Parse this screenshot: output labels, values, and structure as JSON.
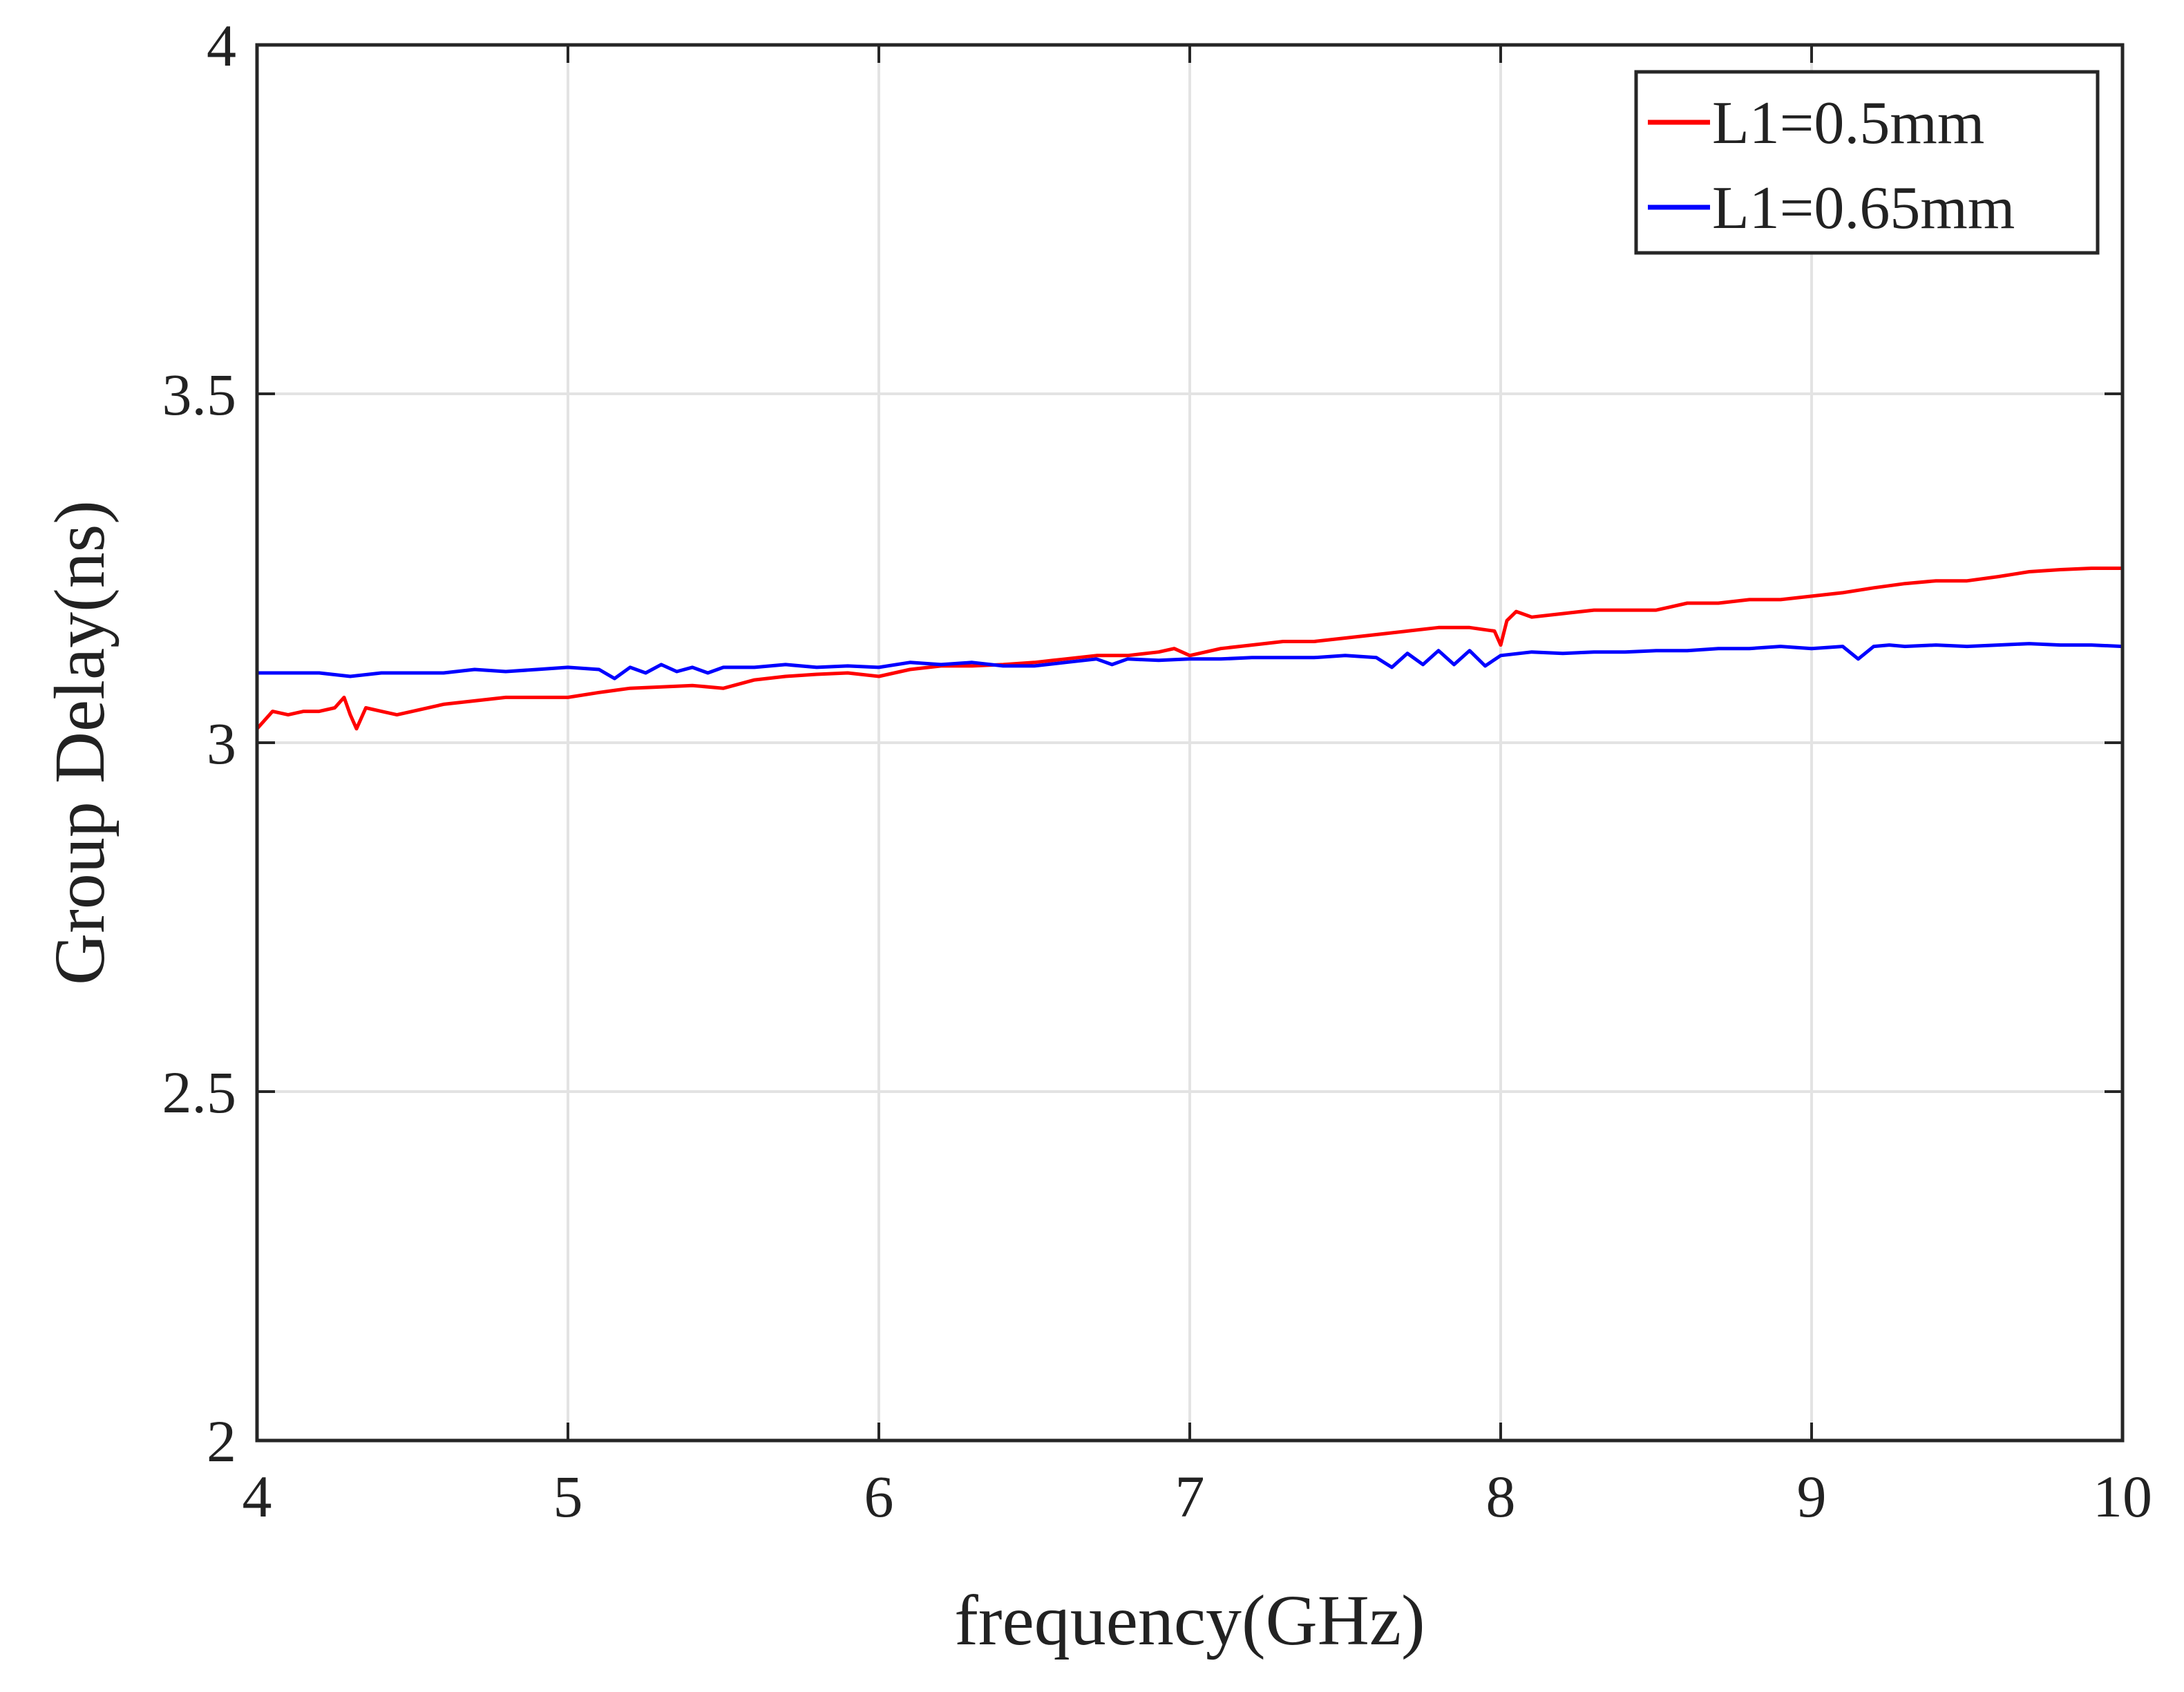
{
  "chart_data": {
    "type": "line",
    "title": "",
    "xlabel": "frequency(GHz)",
    "ylabel": "Group Delay(ns)",
    "xlim": [
      4,
      10
    ],
    "ylim": [
      2,
      4
    ],
    "xticks": [
      4,
      5,
      6,
      7,
      8,
      9,
      10
    ],
    "yticks": [
      2,
      2.5,
      3,
      3.5,
      4
    ],
    "xtick_labels": [
      "4",
      "5",
      "6",
      "7",
      "8",
      "9",
      "10"
    ],
    "ytick_labels": [
      "2",
      "2.5",
      "3",
      "3.5",
      "4"
    ],
    "grid": true,
    "legend_position": "top-right",
    "series": [
      {
        "name": "L1=0.5mm",
        "color": "#ff0000",
        "x": [
          4.0,
          4.05,
          4.1,
          4.15,
          4.2,
          4.25,
          4.28,
          4.3,
          4.32,
          4.35,
          4.4,
          4.45,
          4.5,
          4.6,
          4.7,
          4.8,
          4.9,
          5.0,
          5.1,
          5.2,
          5.3,
          5.4,
          5.5,
          5.6,
          5.7,
          5.8,
          5.9,
          6.0,
          6.1,
          6.2,
          6.3,
          6.4,
          6.5,
          6.6,
          6.7,
          6.8,
          6.9,
          6.95,
          7.0,
          7.1,
          7.2,
          7.3,
          7.4,
          7.5,
          7.6,
          7.7,
          7.8,
          7.9,
          7.98,
          8.0,
          8.02,
          8.05,
          8.1,
          8.2,
          8.3,
          8.4,
          8.5,
          8.6,
          8.7,
          8.8,
          8.9,
          9.0,
          9.1,
          9.2,
          9.3,
          9.4,
          9.5,
          9.6,
          9.7,
          9.8,
          9.9,
          10.0
        ],
        "values": [
          3.02,
          3.045,
          3.04,
          3.045,
          3.045,
          3.05,
          3.065,
          3.04,
          3.02,
          3.05,
          3.045,
          3.04,
          3.045,
          3.055,
          3.06,
          3.065,
          3.065,
          3.065,
          3.072,
          3.078,
          3.08,
          3.082,
          3.078,
          3.09,
          3.095,
          3.098,
          3.1,
          3.095,
          3.105,
          3.11,
          3.11,
          3.112,
          3.115,
          3.12,
          3.125,
          3.125,
          3.13,
          3.135,
          3.125,
          3.135,
          3.14,
          3.145,
          3.145,
          3.15,
          3.155,
          3.16,
          3.165,
          3.165,
          3.16,
          3.14,
          3.175,
          3.188,
          3.18,
          3.185,
          3.19,
          3.19,
          3.19,
          3.2,
          3.2,
          3.205,
          3.205,
          3.21,
          3.215,
          3.222,
          3.228,
          3.232,
          3.232,
          3.238,
          3.245,
          3.248,
          3.25,
          3.25
        ]
      },
      {
        "name": "L1=0.65mm",
        "color": "#0000ff",
        "x": [
          4.0,
          4.1,
          4.2,
          4.3,
          4.4,
          4.5,
          4.6,
          4.7,
          4.8,
          4.9,
          5.0,
          5.1,
          5.15,
          5.2,
          5.25,
          5.3,
          5.35,
          5.4,
          5.45,
          5.5,
          5.6,
          5.7,
          5.8,
          5.9,
          6.0,
          6.1,
          6.2,
          6.3,
          6.4,
          6.5,
          6.6,
          6.7,
          6.75,
          6.8,
          6.9,
          7.0,
          7.1,
          7.2,
          7.3,
          7.4,
          7.5,
          7.6,
          7.65,
          7.7,
          7.75,
          7.8,
          7.85,
          7.9,
          7.95,
          8.0,
          8.1,
          8.2,
          8.3,
          8.4,
          8.5,
          8.6,
          8.7,
          8.8,
          8.9,
          9.0,
          9.1,
          9.15,
          9.2,
          9.25,
          9.3,
          9.4,
          9.5,
          9.6,
          9.7,
          9.8,
          9.9,
          10.0
        ],
        "values": [
          3.1,
          3.1,
          3.1,
          3.095,
          3.1,
          3.1,
          3.1,
          3.105,
          3.102,
          3.105,
          3.108,
          3.105,
          3.092,
          3.108,
          3.1,
          3.112,
          3.102,
          3.108,
          3.1,
          3.108,
          3.108,
          3.112,
          3.108,
          3.11,
          3.108,
          3.115,
          3.112,
          3.115,
          3.11,
          3.11,
          3.115,
          3.12,
          3.112,
          3.12,
          3.118,
          3.12,
          3.12,
          3.122,
          3.122,
          3.122,
          3.125,
          3.122,
          3.108,
          3.128,
          3.112,
          3.132,
          3.112,
          3.132,
          3.11,
          3.125,
          3.13,
          3.128,
          3.13,
          3.13,
          3.132,
          3.132,
          3.135,
          3.135,
          3.138,
          3.135,
          3.138,
          3.12,
          3.138,
          3.14,
          3.138,
          3.14,
          3.138,
          3.14,
          3.142,
          3.14,
          3.14,
          3.138
        ]
      }
    ]
  }
}
